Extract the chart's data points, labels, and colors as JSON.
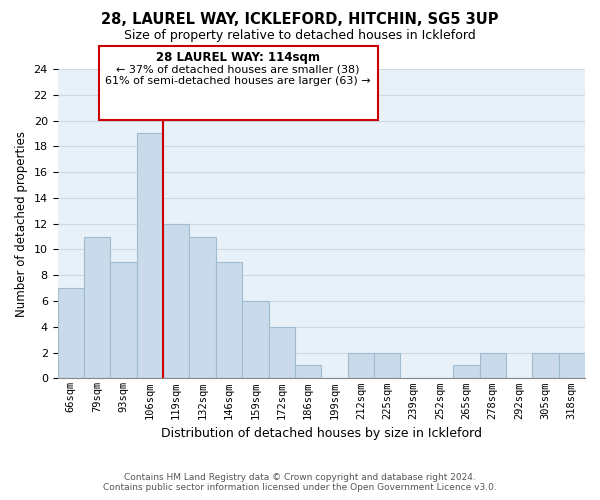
{
  "title": "28, LAUREL WAY, ICKLEFORD, HITCHIN, SG5 3UP",
  "subtitle": "Size of property relative to detached houses in Ickleford",
  "xlabel": "Distribution of detached houses by size in Ickleford",
  "ylabel": "Number of detached properties",
  "bin_labels": [
    "66sqm",
    "79sqm",
    "93sqm",
    "106sqm",
    "119sqm",
    "132sqm",
    "146sqm",
    "159sqm",
    "172sqm",
    "186sqm",
    "199sqm",
    "212sqm",
    "225sqm",
    "239sqm",
    "252sqm",
    "265sqm",
    "278sqm",
    "292sqm",
    "305sqm",
    "318sqm"
  ],
  "bar_values": [
    7,
    11,
    9,
    19,
    12,
    11,
    9,
    6,
    4,
    1,
    0,
    2,
    2,
    0,
    0,
    1,
    2,
    0,
    2,
    2
  ],
  "bar_color": "#c9daea",
  "bar_edge_color": "#a0bdd0",
  "redline_x": 3.5,
  "annotation_title": "28 LAUREL WAY: 114sqm",
  "annotation_line1": "← 37% of detached houses are smaller (38)",
  "annotation_line2": "61% of semi-detached houses are larger (63) →",
  "annotation_box_color": "#ffffff",
  "annotation_box_edge": "#cc0000",
  "ylim": [
    0,
    24
  ],
  "yticks": [
    0,
    2,
    4,
    6,
    8,
    10,
    12,
    14,
    16,
    18,
    20,
    22,
    24
  ],
  "grid_color": "#cdd9e5",
  "background_color": "#e8f0f8",
  "footer1": "Contains HM Land Registry data © Crown copyright and database right 2024.",
  "footer2": "Contains public sector information licensed under the Open Government Licence v3.0."
}
